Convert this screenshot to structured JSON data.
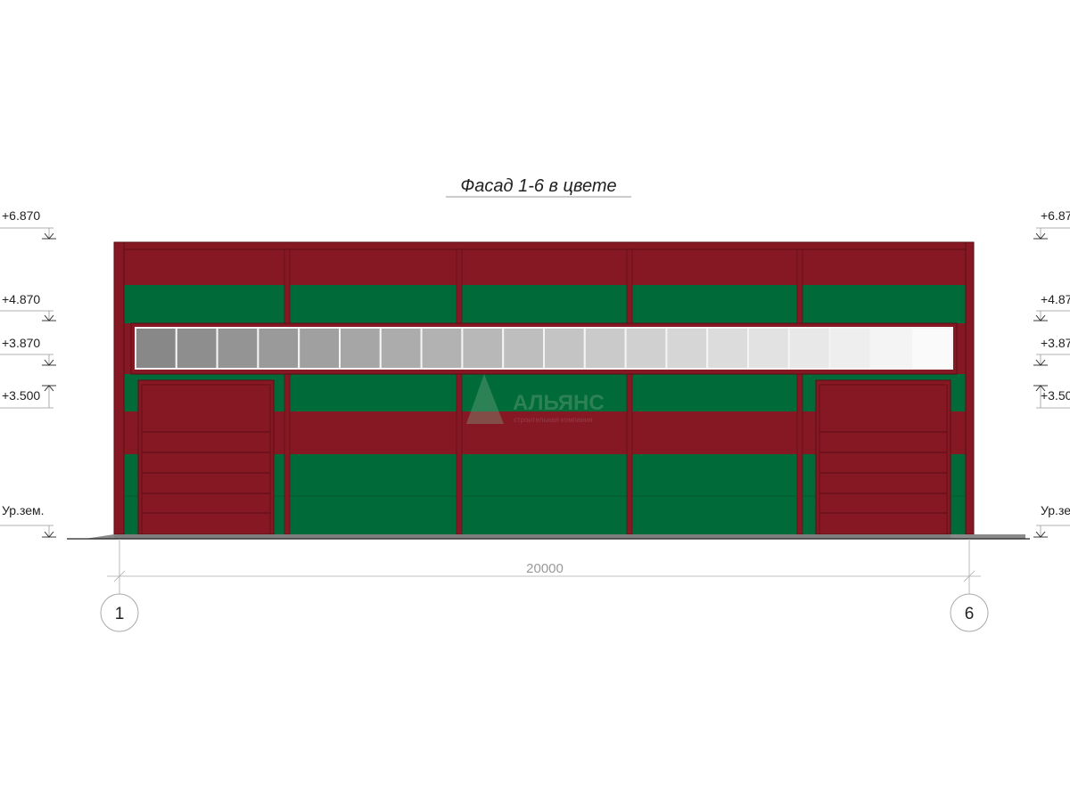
{
  "title": "Фасад 1-6 в цвете",
  "levels": [
    {
      "label": "+6.870",
      "dir": "down"
    },
    {
      "label": "+4.870",
      "dir": "down"
    },
    {
      "label": "+3.870",
      "dir": "down"
    },
    {
      "label": "+3.500",
      "dir": "up"
    },
    {
      "label": "Ур.зем.",
      "dir": "down"
    }
  ],
  "dimension": "20000",
  "axes": [
    "1",
    "6"
  ],
  "watermark": {
    "name": "АЛЬЯНС",
    "subtitle": "строительная компания"
  },
  "window_panes": 20,
  "colors": {
    "red": "#861824",
    "green": "#006a38",
    "plinth": "#7f7f7f"
  }
}
